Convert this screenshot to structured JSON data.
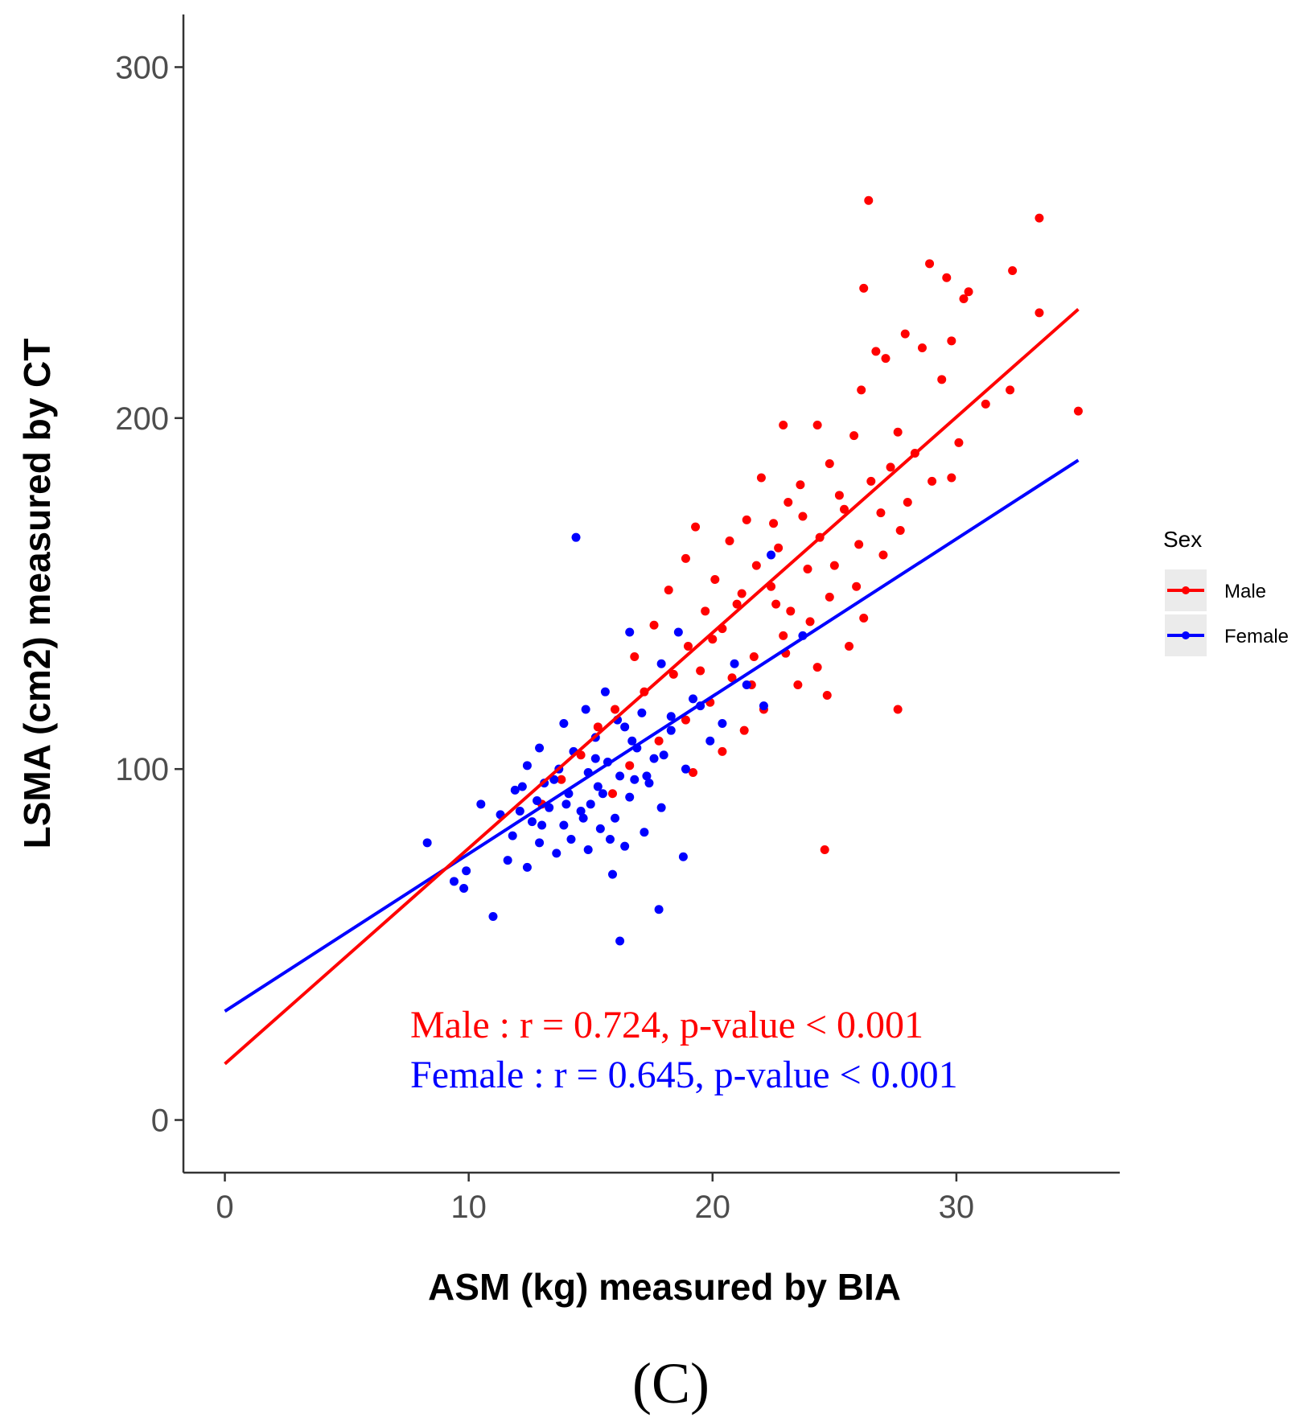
{
  "chart_data": {
    "type": "scatter",
    "title": "",
    "xlabel": "ASM (kg) measured by BIA",
    "ylabel": "LSMA (cm2) measured by CT",
    "xlim": [
      -1.7,
      36.7
    ],
    "ylim": [
      -15,
      315
    ],
    "x_ticks": [
      0,
      10,
      20,
      30
    ],
    "y_ticks": [
      0,
      100,
      200,
      300
    ],
    "grid": false,
    "legend": {
      "title": "Sex",
      "position": "right",
      "entries": [
        {
          "name": "Male",
          "color": "#ff0000"
        },
        {
          "name": "Female",
          "color": "#0000ff"
        }
      ]
    },
    "series": [
      {
        "name": "Male",
        "color": "#ff0000",
        "fit_line": {
          "x": [
            0,
            35
          ],
          "y": [
            16,
            231
          ]
        },
        "points": [
          [
            26.4,
            262
          ],
          [
            33.4,
            257
          ],
          [
            28.9,
            244
          ],
          [
            32.3,
            242
          ],
          [
            30.5,
            236
          ],
          [
            30.3,
            234
          ],
          [
            26.2,
            237
          ],
          [
            29.6,
            240
          ],
          [
            33.4,
            230
          ],
          [
            27.9,
            224
          ],
          [
            28.6,
            220
          ],
          [
            27.1,
            217
          ],
          [
            29.8,
            222
          ],
          [
            26.7,
            219
          ],
          [
            35.0,
            202
          ],
          [
            32.2,
            208
          ],
          [
            29.4,
            211
          ],
          [
            26.1,
            208
          ],
          [
            24.3,
            198
          ],
          [
            22.9,
            198
          ],
          [
            27.6,
            196
          ],
          [
            25.8,
            195
          ],
          [
            28.3,
            190
          ],
          [
            30.1,
            193
          ],
          [
            29.0,
            182
          ],
          [
            24.8,
            187
          ],
          [
            23.6,
            181
          ],
          [
            22.0,
            183
          ],
          [
            25.2,
            178
          ],
          [
            26.9,
            173
          ],
          [
            21.4,
            171
          ],
          [
            27.7,
            168
          ],
          [
            23.1,
            176
          ],
          [
            24.4,
            166
          ],
          [
            26.0,
            164
          ],
          [
            20.7,
            165
          ],
          [
            19.3,
            169
          ],
          [
            22.7,
            163
          ],
          [
            25.0,
            158
          ],
          [
            18.9,
            160
          ],
          [
            21.8,
            158
          ],
          [
            23.9,
            157
          ],
          [
            27.0,
            161
          ],
          [
            20.1,
            154
          ],
          [
            22.4,
            152
          ],
          [
            24.8,
            149
          ],
          [
            18.2,
            151
          ],
          [
            21.0,
            147
          ],
          [
            23.2,
            145
          ],
          [
            19.7,
            145
          ],
          [
            26.2,
            143
          ],
          [
            17.6,
            141
          ],
          [
            20.4,
            140
          ],
          [
            22.9,
            138
          ],
          [
            25.6,
            135
          ],
          [
            19.0,
            135
          ],
          [
            21.7,
            132
          ],
          [
            16.8,
            132
          ],
          [
            24.3,
            129
          ],
          [
            18.4,
            127
          ],
          [
            20.8,
            126
          ],
          [
            23.5,
            124
          ],
          [
            17.2,
            122
          ],
          [
            19.9,
            119
          ],
          [
            22.1,
            117
          ],
          [
            16.0,
            117
          ],
          [
            24.7,
            121
          ],
          [
            18.9,
            114
          ],
          [
            21.3,
            111
          ],
          [
            15.3,
            112
          ],
          [
            17.8,
            108
          ],
          [
            20.4,
            105
          ],
          [
            14.6,
            104
          ],
          [
            16.6,
            101
          ],
          [
            19.2,
            99
          ],
          [
            13.8,
            97
          ],
          [
            15.9,
            93
          ],
          [
            13.0,
            90
          ],
          [
            27.6,
            117
          ],
          [
            24.6,
            77
          ],
          [
            29.8,
            183
          ],
          [
            31.2,
            204
          ],
          [
            22.5,
            170
          ],
          [
            23.7,
            172
          ],
          [
            25.4,
            174
          ],
          [
            21.2,
            150
          ],
          [
            22.6,
            147
          ],
          [
            24.0,
            142
          ],
          [
            25.9,
            152
          ],
          [
            27.3,
            186
          ],
          [
            28.0,
            176
          ],
          [
            26.5,
            182
          ],
          [
            20.0,
            137
          ],
          [
            19.5,
            128
          ],
          [
            21.6,
            124
          ],
          [
            23.0,
            133
          ]
        ]
      },
      {
        "name": "Female",
        "color": "#0000ff",
        "fit_line": {
          "x": [
            0,
            35
          ],
          "y": [
            31,
            188
          ]
        },
        "points": [
          [
            14.4,
            166
          ],
          [
            22.4,
            161
          ],
          [
            16.6,
            139
          ],
          [
            18.6,
            139
          ],
          [
            17.9,
            130
          ],
          [
            15.6,
            122
          ],
          [
            19.2,
            120
          ],
          [
            14.8,
            117
          ],
          [
            17.1,
            116
          ],
          [
            16.4,
            112
          ],
          [
            13.9,
            113
          ],
          [
            18.3,
            111
          ],
          [
            15.2,
            109
          ],
          [
            19.9,
            108
          ],
          [
            12.9,
            106
          ],
          [
            16.9,
            106
          ],
          [
            14.3,
            105
          ],
          [
            17.6,
            103
          ],
          [
            15.7,
            102
          ],
          [
            12.4,
            101
          ],
          [
            18.9,
            100
          ],
          [
            14.9,
            99
          ],
          [
            16.2,
            98
          ],
          [
            13.5,
            97
          ],
          [
            17.4,
            96
          ],
          [
            15.3,
            95
          ],
          [
            11.9,
            94
          ],
          [
            14.1,
            93
          ],
          [
            16.6,
            92
          ],
          [
            12.8,
            91
          ],
          [
            15.0,
            90
          ],
          [
            13.3,
            89
          ],
          [
            17.9,
            89
          ],
          [
            14.6,
            88
          ],
          [
            10.5,
            90
          ],
          [
            11.3,
            87
          ],
          [
            16.0,
            86
          ],
          [
            12.6,
            85
          ],
          [
            13.9,
            84
          ],
          [
            15.4,
            83
          ],
          [
            17.2,
            82
          ],
          [
            11.8,
            81
          ],
          [
            14.2,
            80
          ],
          [
            12.9,
            79
          ],
          [
            16.4,
            78
          ],
          [
            8.3,
            79
          ],
          [
            13.6,
            76
          ],
          [
            11.6,
            74
          ],
          [
            14.9,
            77
          ],
          [
            18.8,
            75
          ],
          [
            9.9,
            71
          ],
          [
            12.4,
            72
          ],
          [
            9.4,
            68
          ],
          [
            9.8,
            66
          ],
          [
            15.9,
            70
          ],
          [
            11.0,
            58
          ],
          [
            17.8,
            60
          ],
          [
            16.2,
            51
          ],
          [
            20.9,
            130
          ],
          [
            21.4,
            124
          ],
          [
            22.1,
            118
          ],
          [
            23.7,
            138
          ],
          [
            19.5,
            118
          ],
          [
            18.3,
            115
          ],
          [
            20.4,
            113
          ],
          [
            16.1,
            114
          ],
          [
            15.2,
            103
          ],
          [
            13.1,
            96
          ],
          [
            12.1,
            88
          ],
          [
            14.7,
            86
          ],
          [
            16.8,
            97
          ],
          [
            18.0,
            104
          ],
          [
            13.0,
            84
          ],
          [
            15.8,
            80
          ],
          [
            12.2,
            95
          ],
          [
            13.7,
            100
          ],
          [
            14.0,
            90
          ],
          [
            15.5,
            93
          ],
          [
            16.7,
            108
          ],
          [
            17.3,
            98
          ]
        ]
      }
    ],
    "annotations": [
      {
        "text": "Male : r = 0.724, p-value < 0.001",
        "color": "#ff0000"
      },
      {
        "text": "Female : r = 0.645, p-value < 0.001",
        "color": "#0000ff"
      }
    ],
    "caption": "(C)"
  }
}
